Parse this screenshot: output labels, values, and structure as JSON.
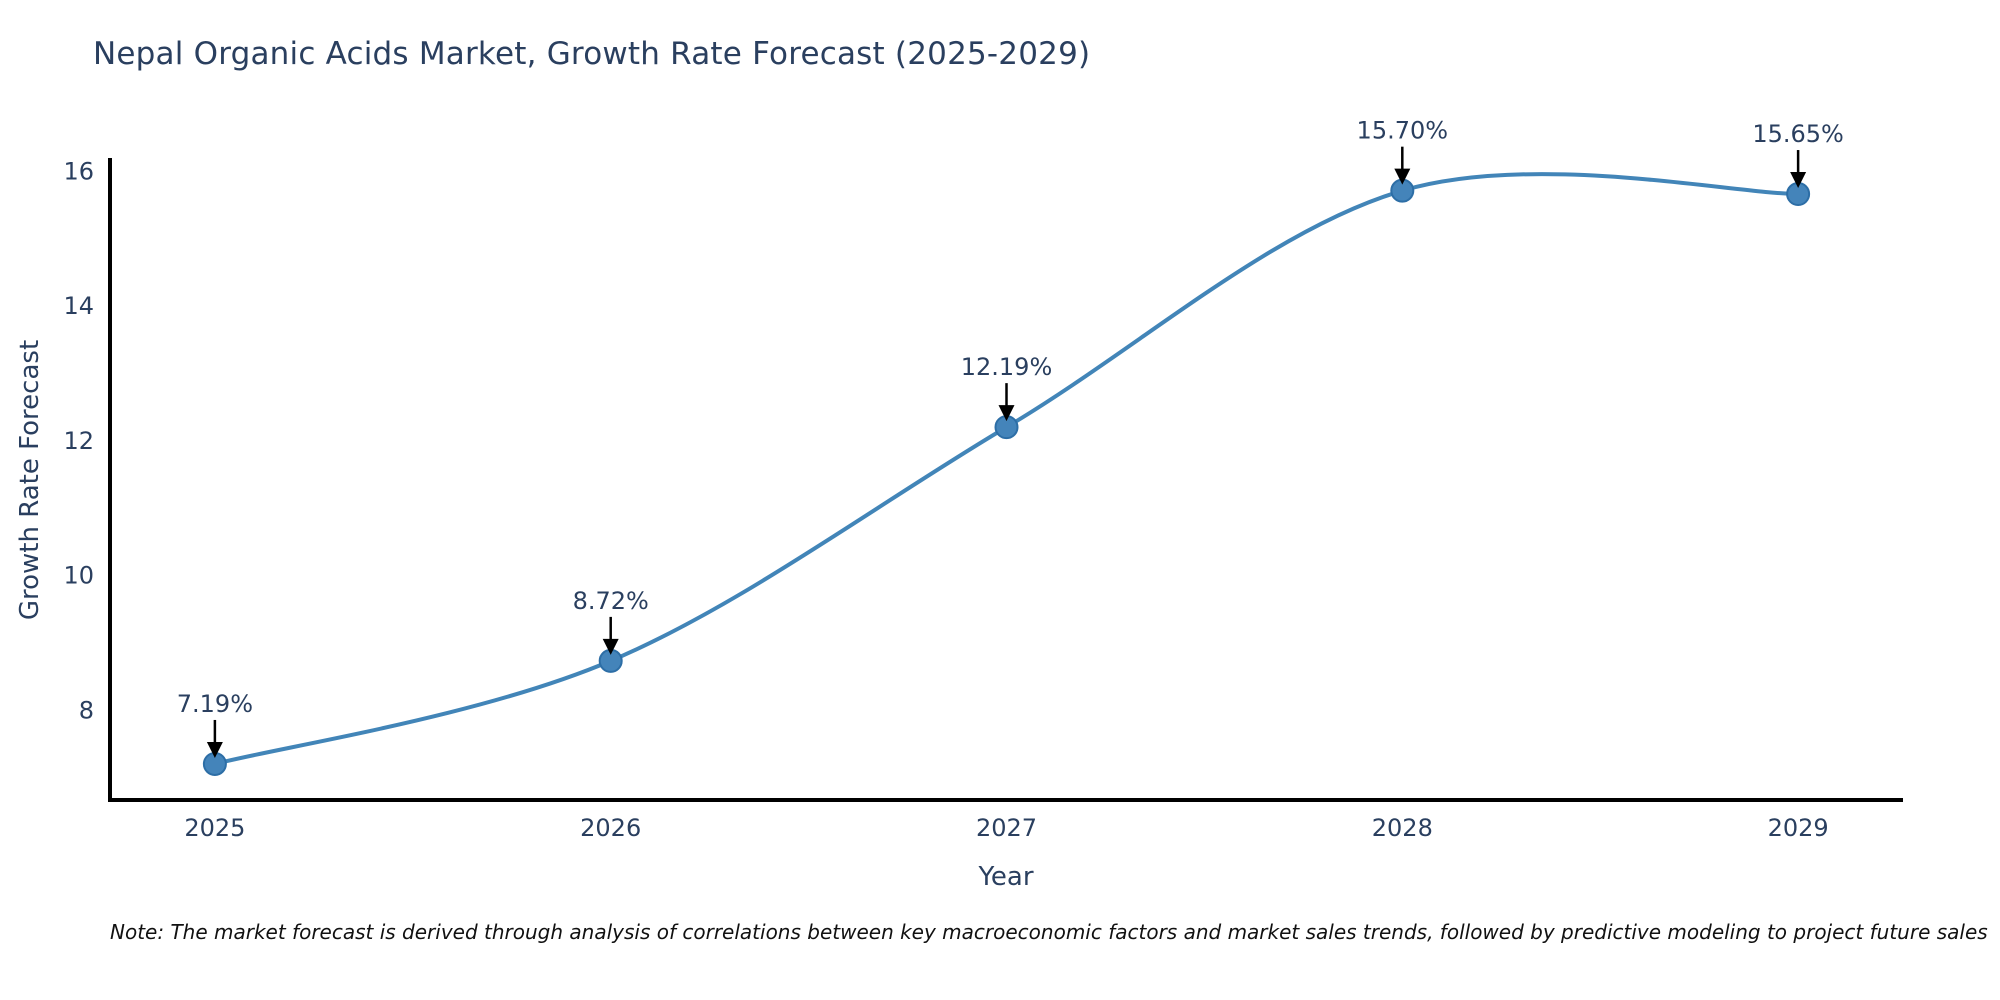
{
  "title": "Nepal Organic Acids Market, Growth Rate Forecast (2025-2029)",
  "note": "Note: The market forecast is derived through analysis of correlations between key macroeconomic factors and market sales trends, followed by predictive modeling to project future sales",
  "chart_data": {
    "type": "line",
    "title": "Nepal Organic Acids Market, Growth Rate Forecast (2025-2029)",
    "xlabel": "Year",
    "ylabel": "Growth Rate Forecast",
    "x": [
      2025,
      2026,
      2027,
      2028,
      2029
    ],
    "values": [
      7.19,
      8.72,
      12.19,
      15.7,
      15.65
    ],
    "point_labels": [
      "7.19%",
      "8.72%",
      "12.19%",
      "15.70%",
      "15.65%"
    ],
    "xticks": [
      "2025",
      "2026",
      "2027",
      "2028",
      "2029"
    ],
    "yticks": [
      8,
      10,
      12,
      14,
      16
    ],
    "xlim": [
      2024.735,
      2029.265
    ],
    "ylim": [
      6.655,
      16.185
    ],
    "grid": false,
    "legend": false,
    "line_style": "spline",
    "colors": {
      "line": "#4285b8",
      "marker_fill": "#4484ba",
      "marker_edge": "#2d6ea6",
      "axis_spine": "#000000",
      "text": "#2a3f5f",
      "annotation_text": "#2a3f5f",
      "annotation_arrow": "#000000",
      "note_text": "#111111",
      "background": "#ffffff"
    }
  }
}
